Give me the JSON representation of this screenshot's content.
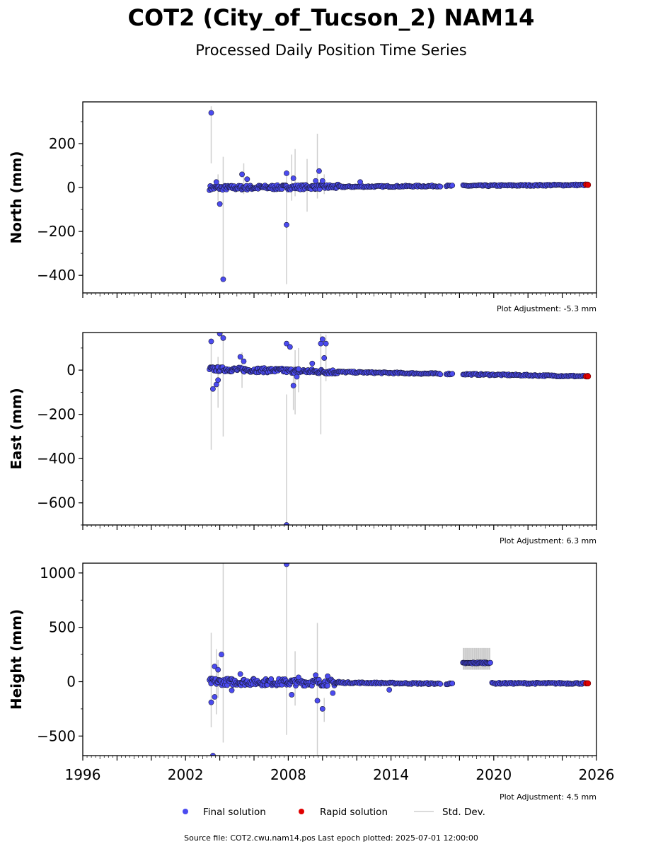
{
  "header": {
    "title": "COT2 (City_of_Tucson_2) NAM14",
    "subtitle": "Processed Daily Position Time Series"
  },
  "legend": {
    "final_label": "Final solution",
    "rapid_label": "Rapid solution",
    "std_label": "Std. Dev."
  },
  "footer": {
    "source_text": "Source file: COT2.cwu.nam14.pos  Last epoch plotted: 2025-07-01 12:00:00"
  },
  "colors": {
    "final": "#4b4bf0",
    "rapid": "#e00000",
    "stddev": "#cfcfcf",
    "marker_edge": "#1a1a3a"
  },
  "chart_data": [
    {
      "type": "scatter",
      "panel": "north",
      "ylabel": "North (mm)",
      "adjustment": "Plot Adjustment: -5.3 mm",
      "xlim": [
        1996,
        2026
      ],
      "ylim": [
        -480,
        390
      ],
      "yticks": [
        200,
        0,
        -200,
        -400
      ],
      "ytick_labels": [
        "200",
        "0",
        "−200",
        "−400"
      ],
      "trend": [
        [
          2003.4,
          -2
        ],
        [
          2012,
          4
        ],
        [
          2025.5,
          12
        ]
      ],
      "outliers": [
        [
          2003.5,
          340
        ],
        [
          2003.8,
          25
        ],
        [
          2004.0,
          -75
        ],
        [
          2004.2,
          -418
        ],
        [
          2005.3,
          60
        ],
        [
          2005.6,
          38
        ],
        [
          2007.9,
          -170
        ],
        [
          2007.9,
          65
        ],
        [
          2008.3,
          42
        ],
        [
          2009.6,
          30
        ],
        [
          2009.8,
          75
        ],
        [
          2010.0,
          30
        ],
        [
          2012.2,
          25
        ]
      ],
      "errorbars": [
        [
          2003.5,
          110,
          370
        ],
        [
          2003.9,
          -60,
          60
        ],
        [
          2004.2,
          -420,
          140
        ],
        [
          2005.4,
          -30,
          110
        ],
        [
          2007.9,
          -440,
          80
        ],
        [
          2008.2,
          -60,
          150
        ],
        [
          2008.4,
          -40,
          175
        ],
        [
          2009.1,
          -110,
          130
        ],
        [
          2009.7,
          -50,
          245
        ],
        [
          2010.1,
          -30,
          60
        ]
      ],
      "gaps": [
        [
          2016.9,
          2017.2
        ],
        [
          2017.6,
          2018.2
        ]
      ],
      "rapid": [
        [
          2025.4,
          13
        ],
        [
          2025.5,
          12
        ]
      ]
    },
    {
      "type": "scatter",
      "panel": "east",
      "ylabel": "East (mm)",
      "adjustment": "Plot Adjustment: 6.3 mm",
      "xlim": [
        1996,
        2026
      ],
      "ylim": [
        -700,
        170
      ],
      "yticks": [
        0,
        -200,
        -400,
        -600
      ],
      "ytick_labels": [
        "0",
        "−200",
        "−400",
        "−600"
      ],
      "trend": [
        [
          2003.4,
          5
        ],
        [
          2012,
          -10
        ],
        [
          2025.5,
          -28
        ]
      ],
      "outliers": [
        [
          2003.5,
          130
        ],
        [
          2003.6,
          -85
        ],
        [
          2003.8,
          -65
        ],
        [
          2003.9,
          -45
        ],
        [
          2004.0,
          165
        ],
        [
          2004.2,
          145
        ],
        [
          2005.2,
          60
        ],
        [
          2005.4,
          40
        ],
        [
          2007.9,
          120
        ],
        [
          2008.1,
          105
        ],
        [
          2007.9,
          -700
        ],
        [
          2008.3,
          -70
        ],
        [
          2008.5,
          -30
        ],
        [
          2009.4,
          30
        ],
        [
          2009.9,
          120
        ],
        [
          2010.0,
          140
        ],
        [
          2010.2,
          120
        ],
        [
          2010.1,
          55
        ],
        [
          2008.6,
          5
        ]
      ],
      "errorbars": [
        [
          2003.5,
          -360,
          140
        ],
        [
          2003.9,
          -170,
          60
        ],
        [
          2004.2,
          -300,
          160
        ],
        [
          2005.3,
          -80,
          80
        ],
        [
          2007.9,
          -700,
          -110
        ],
        [
          2008.3,
          -180,
          20
        ],
        [
          2008.4,
          -200,
          90
        ],
        [
          2008.6,
          -100,
          100
        ],
        [
          2009.9,
          -290,
          165
        ],
        [
          2010.2,
          -50,
          160
        ]
      ],
      "gaps": [
        [
          2016.9,
          2017.2
        ],
        [
          2017.6,
          2018.2
        ]
      ],
      "rapid": [
        [
          2025.4,
          -28
        ],
        [
          2025.5,
          -28
        ]
      ]
    },
    {
      "type": "scatter",
      "panel": "height",
      "ylabel": "Height (mm)",
      "adjustment": "Plot Adjustment: 4.5 mm",
      "xlim": [
        1996,
        2026
      ],
      "ylim": [
        -680,
        1090
      ],
      "yticks": [
        1000,
        500,
        0,
        -500
      ],
      "ytick_labels": [
        "1000",
        "500",
        "0",
        "−500"
      ],
      "xticks": [
        1996,
        2002,
        2008,
        2014,
        2020,
        2026
      ],
      "trend": [
        [
          2003.4,
          0
        ],
        [
          2012,
          -10
        ],
        [
          2017.8,
          -20
        ]
      ],
      "offset_segment": [
        [
          2018.2,
          170
        ],
        [
          2019.8,
          175
        ]
      ],
      "late_segment": [
        [
          2019.9,
          -15
        ],
        [
          2025.5,
          -15
        ]
      ],
      "outliers": [
        [
          2003.5,
          -190
        ],
        [
          2003.6,
          -680
        ],
        [
          2003.7,
          -140
        ],
        [
          2003.7,
          140
        ],
        [
          2003.9,
          110
        ],
        [
          2004.1,
          250
        ],
        [
          2004.7,
          -80
        ],
        [
          2005.2,
          70
        ],
        [
          2007.9,
          1080
        ],
        [
          2008.2,
          -120
        ],
        [
          2008.6,
          40
        ],
        [
          2009.7,
          -175
        ],
        [
          2010.0,
          -250
        ],
        [
          2010.6,
          -105
        ],
        [
          2013.9,
          -75
        ],
        [
          2009.6,
          60
        ],
        [
          2010.3,
          50
        ]
      ],
      "errorbars": [
        [
          2003.5,
          -420,
          450
        ],
        [
          2003.8,
          -300,
          300
        ],
        [
          2004.2,
          -560,
          1090
        ],
        [
          2007.9,
          -490,
          1090
        ],
        [
          2008.4,
          -220,
          280
        ],
        [
          2009.7,
          -680,
          540
        ],
        [
          2010.1,
          -370,
          -150
        ],
        [
          2003.9,
          -150,
          200
        ]
      ],
      "gaps": [
        [
          2016.9,
          2017.2
        ],
        [
          2017.6,
          2018.2
        ]
      ],
      "rapid": [
        [
          2025.4,
          -15
        ],
        [
          2025.5,
          -15
        ]
      ]
    }
  ]
}
